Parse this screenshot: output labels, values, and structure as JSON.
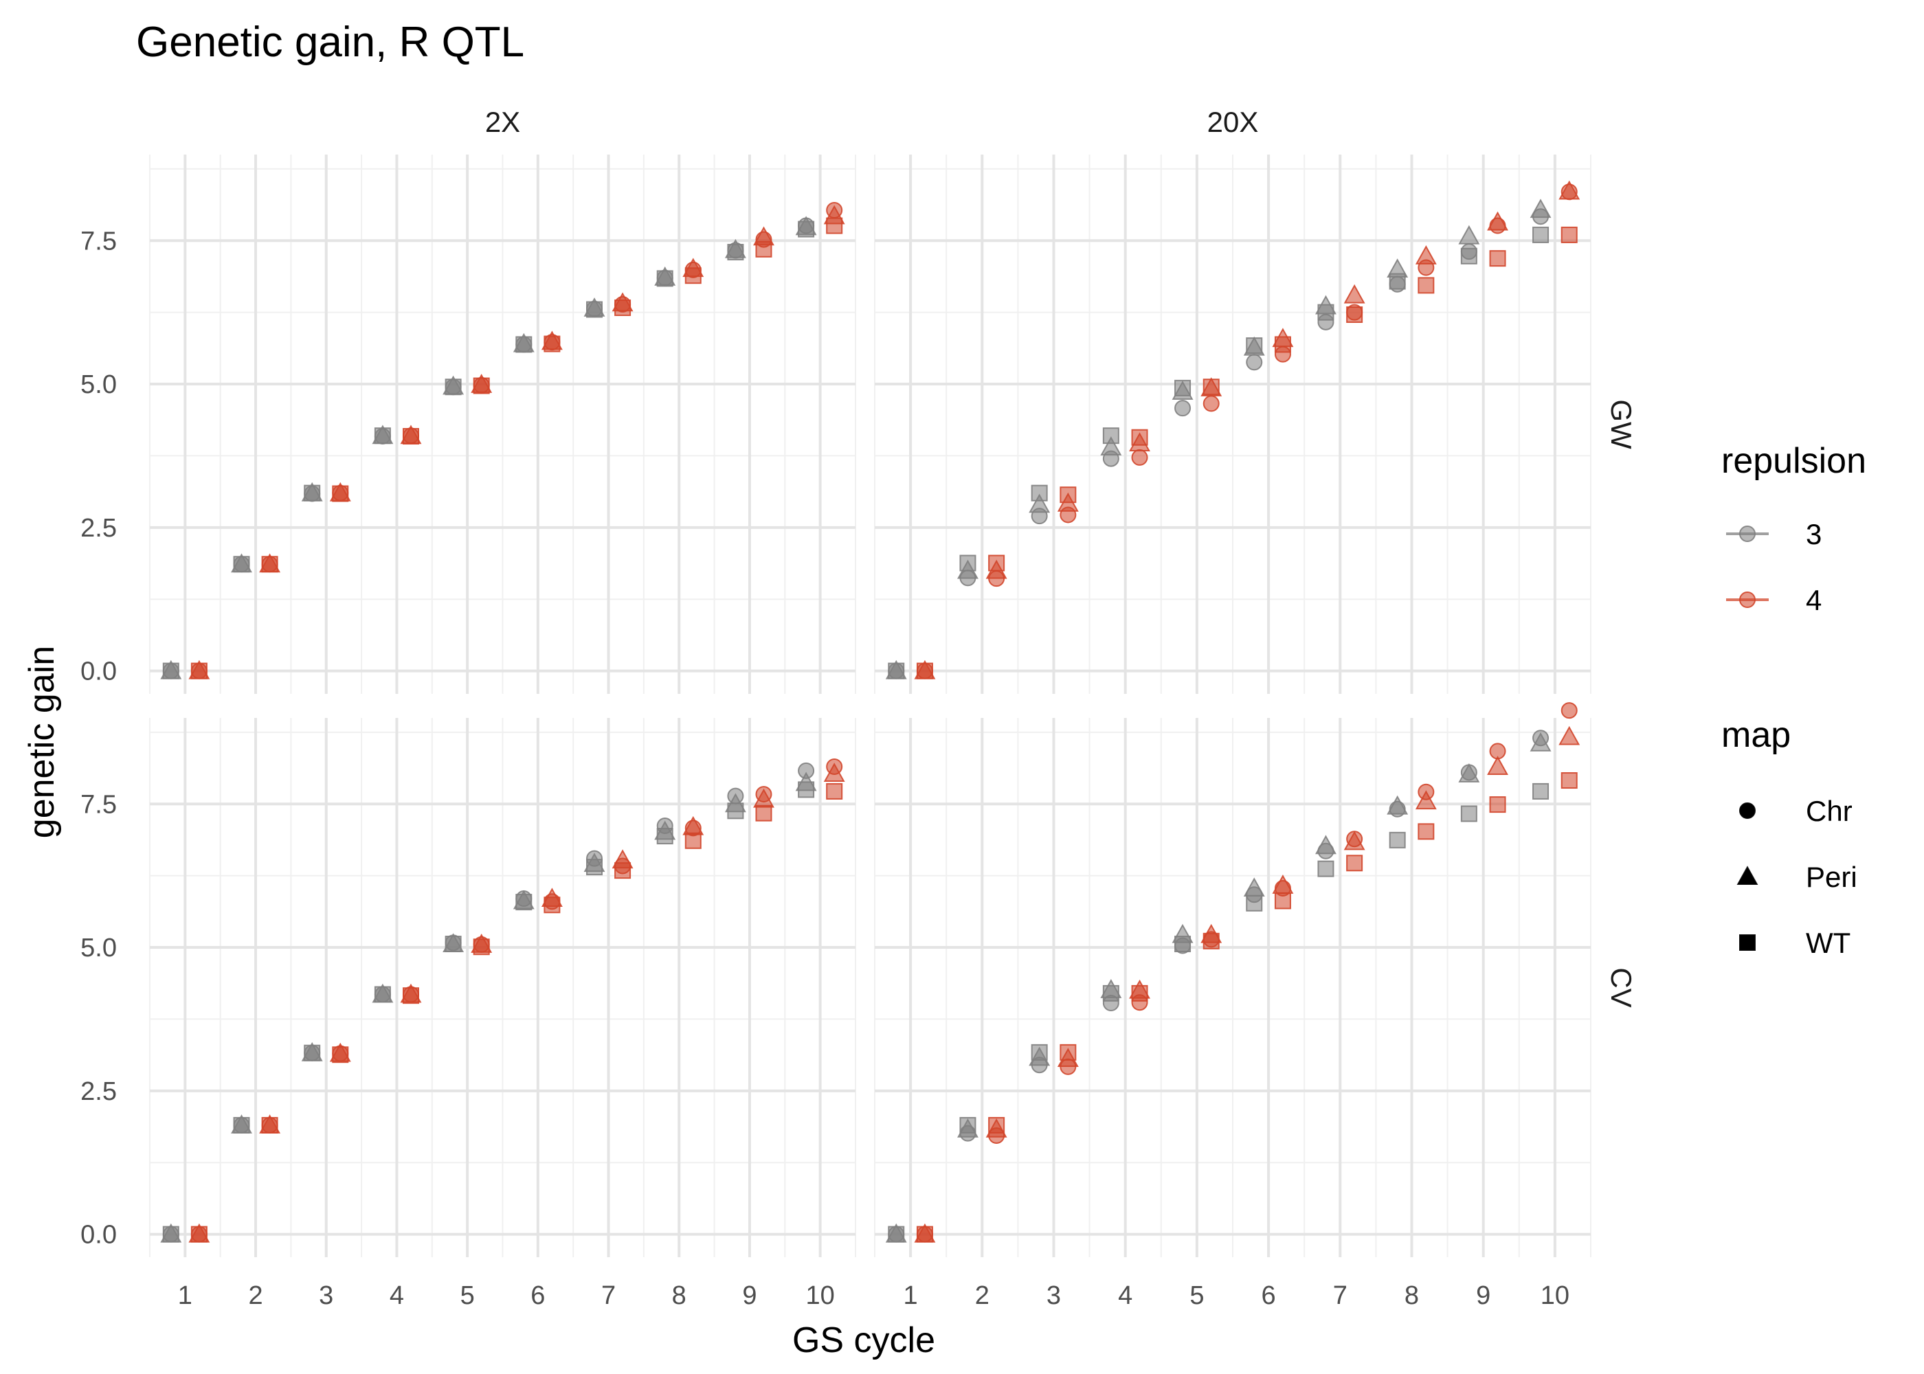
{
  "chart_data": {
    "type": "scatter",
    "title": "Genetic gain, R QTL",
    "xlabel": "GS cycle",
    "ylabel": "genetic gain",
    "x_ticks": [
      "1",
      "2",
      "3",
      "4",
      "5",
      "6",
      "7",
      "8",
      "9",
      "10"
    ],
    "y_ticks": [
      "0.0",
      "2.5",
      "5.0",
      "7.5"
    ],
    "xlim": [
      0.5,
      10.5
    ],
    "ylim": [
      -0.4,
      9.0
    ],
    "columns": [
      "2X",
      "20X"
    ],
    "rows": [
      "GW",
      "CV"
    ],
    "grid": true,
    "legend_placement": "right",
    "legends": {
      "repulsion": {
        "title": "repulsion",
        "entries": [
          {
            "label": "3",
            "color": "#808080"
          },
          {
            "label": "4",
            "color": "#d2452a"
          }
        ]
      },
      "map": {
        "title": "map",
        "entries": [
          {
            "label": "Chr",
            "shape": "circle"
          },
          {
            "label": "Peri",
            "shape": "triangle"
          },
          {
            "label": "WT",
            "shape": "square"
          }
        ]
      }
    },
    "panels": [
      {
        "row": "GW",
        "col": "2X",
        "series": {
          "3": {
            "Chr": [
              0,
              1.86,
              3.09,
              4.09,
              4.95,
              5.69,
              6.31,
              6.85,
              7.33,
              7.76
            ],
            "Peri": [
              0,
              1.86,
              3.1,
              4.1,
              4.96,
              5.7,
              6.32,
              6.86,
              7.34,
              7.74
            ],
            "WT": [
              0,
              1.86,
              3.1,
              4.1,
              4.95,
              5.69,
              6.3,
              6.84,
              7.3,
              7.7
            ]
          },
          "4": {
            "Chr": [
              0,
              1.86,
              3.1,
              4.1,
              4.98,
              5.73,
              6.39,
              6.99,
              7.52,
              8.03
            ],
            "Peri": [
              0,
              1.86,
              3.1,
              4.1,
              4.99,
              5.74,
              6.41,
              7.01,
              7.56,
              7.93
            ],
            "WT": [
              0,
              1.86,
              3.09,
              4.09,
              4.97,
              5.7,
              6.33,
              6.89,
              7.35,
              7.76
            ]
          }
        }
      },
      {
        "row": "GW",
        "col": "20X",
        "series": {
          "3": {
            "Chr": [
              0,
              1.62,
              2.7,
              3.7,
              4.58,
              5.38,
              6.08,
              6.74,
              7.31,
              7.92
            ],
            "Peri": [
              0,
              1.75,
              2.9,
              3.9,
              4.87,
              5.64,
              6.36,
              7.0,
              7.58,
              8.04
            ],
            "WT": [
              0,
              1.88,
              3.1,
              4.1,
              4.93,
              5.67,
              6.25,
              6.79,
              7.23,
              7.6
            ]
          },
          "4": {
            "Chr": [
              0,
              1.61,
              2.72,
              3.72,
              4.66,
              5.52,
              6.25,
              7.03,
              7.76,
              8.35
            ],
            "Peri": [
              0,
              1.75,
              2.92,
              3.97,
              4.93,
              5.79,
              6.55,
              7.23,
              7.82,
              8.36
            ],
            "WT": [
              0,
              1.88,
              3.07,
              4.07,
              4.95,
              5.69,
              6.21,
              6.72,
              7.19,
              7.6
            ]
          }
        }
      },
      {
        "row": "CV",
        "col": "2X",
        "series": {
          "3": {
            "Chr": [
              0,
              1.9,
              3.16,
              4.18,
              5.08,
              5.85,
              6.55,
              7.12,
              7.64,
              8.08
            ],
            "Peri": [
              0,
              1.9,
              3.16,
              4.18,
              5.06,
              5.81,
              6.46,
              7.02,
              7.5,
              7.87
            ],
            "WT": [
              0,
              1.9,
              3.16,
              4.18,
              5.06,
              5.79,
              6.4,
              6.94,
              7.38,
              7.75
            ]
          },
          "4": {
            "Chr": [
              0,
              1.9,
              3.15,
              4.18,
              5.05,
              5.8,
              6.42,
              7.08,
              7.67,
              8.15
            ],
            "Peri": [
              0,
              1.9,
              3.15,
              4.18,
              5.05,
              5.85,
              6.52,
              7.1,
              7.58,
              8.03
            ],
            "WT": [
              0,
              1.9,
              3.13,
              4.16,
              5.01,
              5.74,
              6.34,
              6.86,
              7.34,
              7.72
            ]
          }
        }
      },
      {
        "row": "CV",
        "col": "20X",
        "series": {
          "3": {
            "Chr": [
              0,
              1.76,
              2.95,
              4.03,
              5.03,
              5.92,
              6.68,
              7.41,
              8.05,
              8.65
            ],
            "Peri": [
              0,
              1.83,
              3.08,
              4.26,
              5.22,
              6.03,
              6.77,
              7.46,
              8.02,
              8.56
            ],
            "WT": [
              0,
              1.9,
              3.17,
              4.2,
              5.06,
              5.77,
              6.37,
              6.87,
              7.33,
              7.72
            ]
          },
          "4": {
            "Chr": [
              0,
              1.72,
              2.92,
              4.04,
              5.14,
              6.03,
              6.89,
              7.71,
              8.42,
              9.13
            ],
            "Peri": [
              0,
              1.83,
              3.06,
              4.25,
              5.22,
              6.08,
              6.84,
              7.55,
              8.15,
              8.67
            ],
            "WT": [
              0,
              1.9,
              3.17,
              4.2,
              5.11,
              5.81,
              6.47,
              7.02,
              7.49,
              7.91
            ]
          }
        }
      }
    ]
  }
}
